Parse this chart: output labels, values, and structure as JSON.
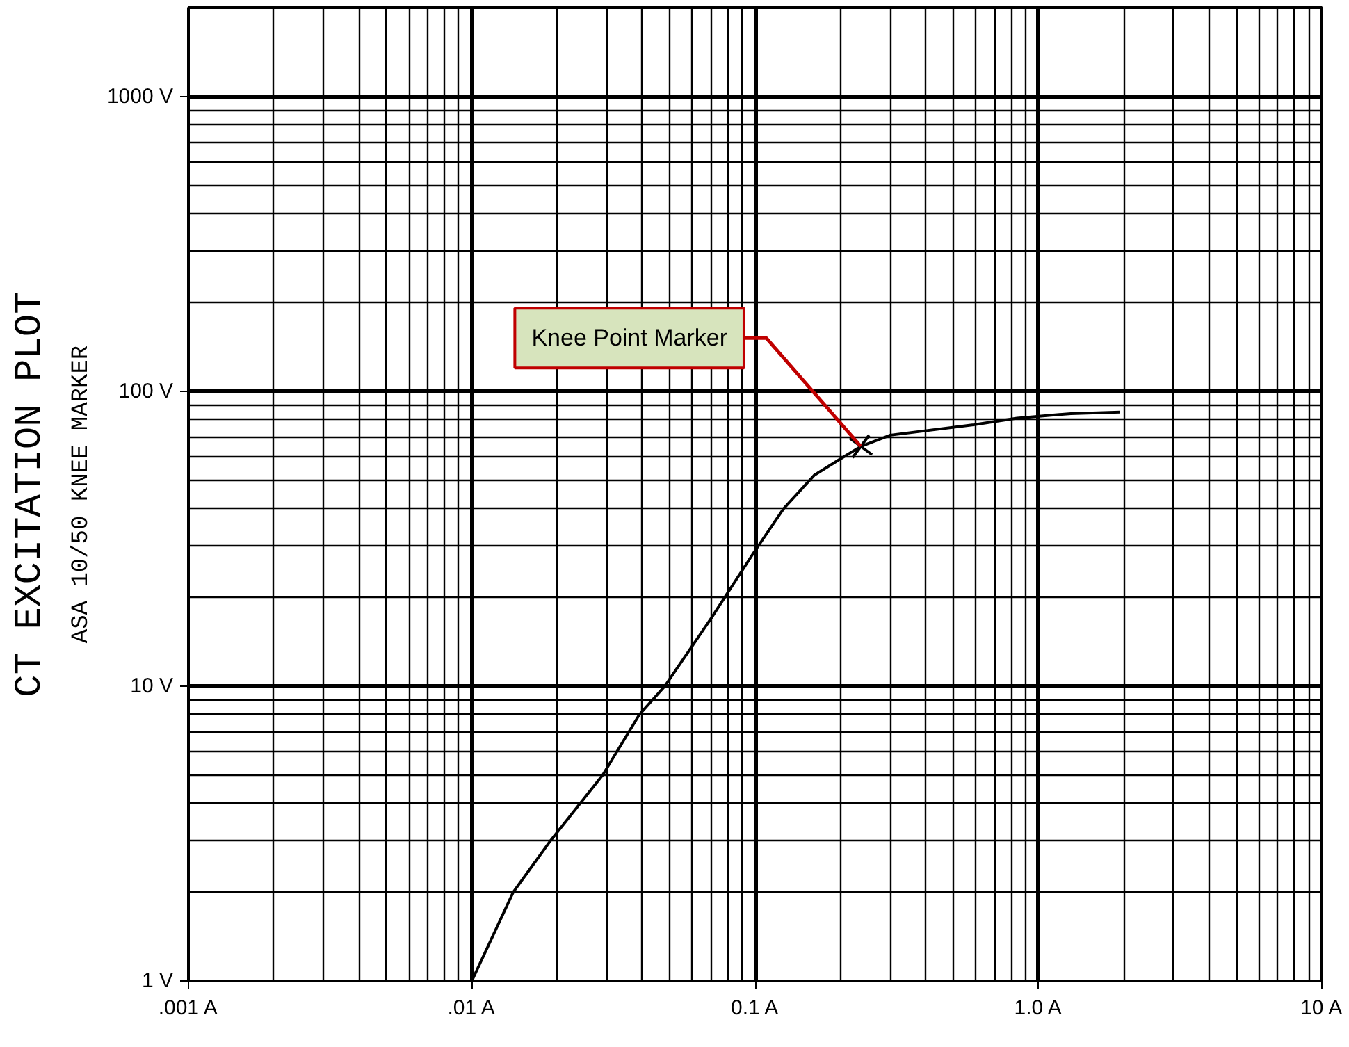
{
  "chart_data": {
    "type": "line",
    "title": "CT EXCITATION PLOT",
    "subtitle": "ASA 10/50 KNEE MARKER",
    "x": [
      0.01,
      0.014,
      0.019,
      0.029,
      0.039,
      0.048,
      0.07,
      0.098,
      0.126,
      0.162,
      0.2,
      0.236,
      0.3,
      0.59,
      0.84,
      1.3,
      1.94
    ],
    "series": [
      {
        "color": "#000000",
        "values": [
          1,
          2,
          3,
          5,
          8,
          10,
          17,
          28,
          40,
          52,
          59,
          65,
          71,
          77,
          81,
          84,
          85
        ]
      }
    ],
    "log": "xy",
    "xlim": [
      0.001,
      10
    ],
    "ylim": [
      1,
      2000
    ],
    "xticks": [
      {
        "value": 0.001,
        "label": ".001 A"
      },
      {
        "value": 0.01,
        "label": ".01 A"
      },
      {
        "value": 0.1,
        "label": "0.1 A"
      },
      {
        "value": 1,
        "label": "1.0 A"
      },
      {
        "value": 10,
        "label": "10 A"
      }
    ],
    "yticks": [
      {
        "value": 1,
        "label": "1 V"
      },
      {
        "value": 10,
        "label": "10 V"
      },
      {
        "value": 100,
        "label": "100 V"
      },
      {
        "value": 1000,
        "label": "1000 V"
      }
    ],
    "grid": true,
    "marker": "none",
    "line_style": "solid",
    "annotations": [
      {
        "text": "Knee Point Marker",
        "x": 0.236,
        "y": 65
      }
    ]
  }
}
